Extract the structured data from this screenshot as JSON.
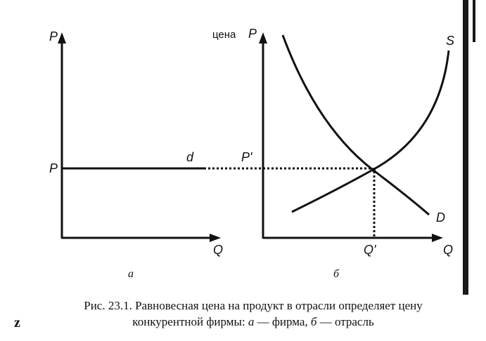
{
  "panel_a": {
    "y_axis_label": "P",
    "x_axis_label": "Q",
    "price_label": "P",
    "demand_label": "d",
    "panel_label": "а"
  },
  "panel_b": {
    "y_axis_word": "цена",
    "y_axis_label": "P",
    "x_axis_label": "Q",
    "equilibrium_price_label": "P'",
    "equilibrium_quantity_label": "Q'",
    "supply_label": "S",
    "demand_label": "D",
    "panel_label": "б"
  },
  "caption": {
    "prefix": "Рис. 23.1. Равновесная цена на продукт в отрасли определяет цену",
    "line2_start": "конкурентной фирмы: ",
    "a_letter": "а",
    "a_text": " — фирма, ",
    "b_letter": "б",
    "b_text": " — отрасль"
  },
  "page_mark": "z"
}
